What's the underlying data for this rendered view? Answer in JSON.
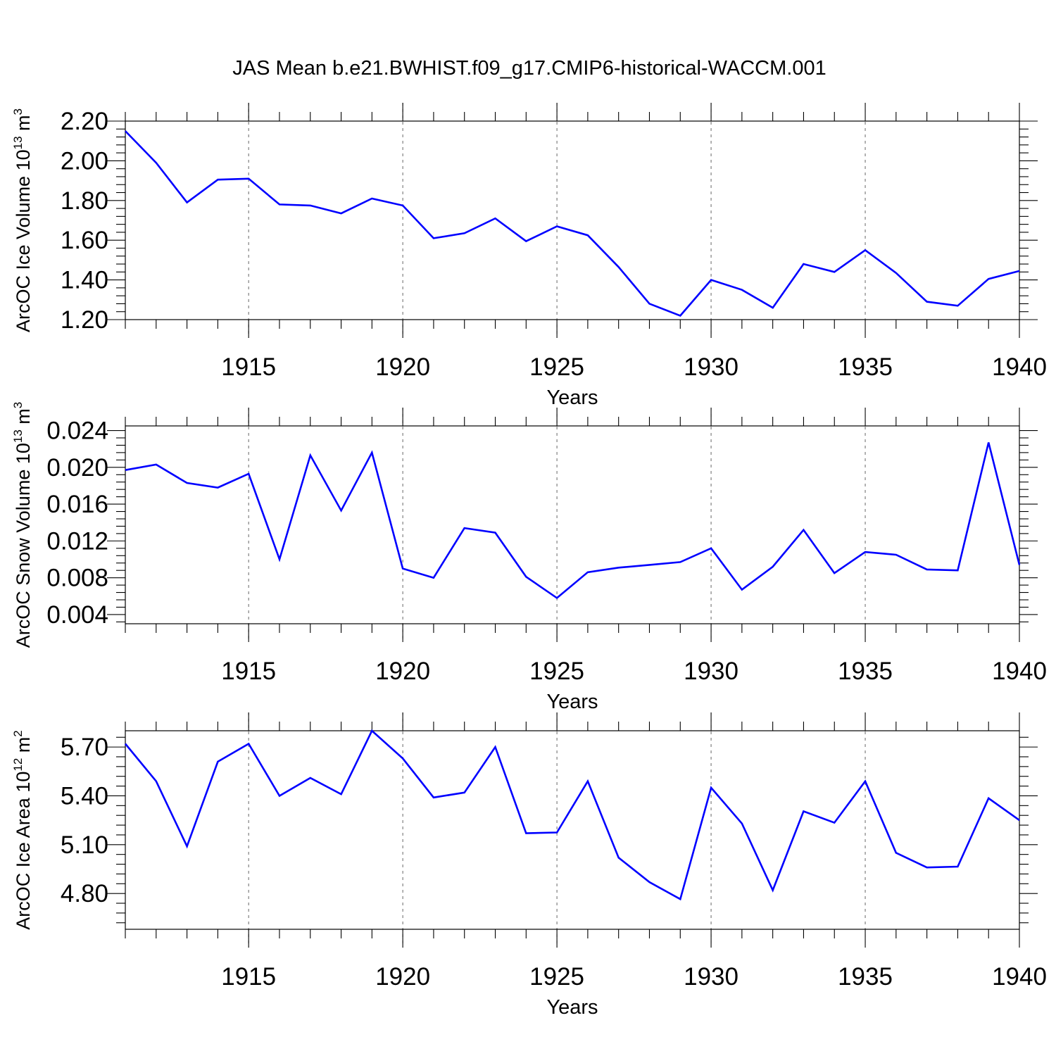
{
  "chart_data": {
    "title": "JAS Mean b.e21.BWHIST.f09_g17.CMIP6-historical-WACCM.001",
    "line_color": "#0000ff",
    "panels": [
      {
        "type": "line",
        "ylabel": "ArcOC Ice Volume 10",
        "ylabel_exp": "13",
        "ylabel_unit": " m",
        "ylabel_unit_exp": "3",
        "xlabel": "Years",
        "xlim": [
          1911,
          1940
        ],
        "ylim": [
          1.2,
          2.2
        ],
        "yticks": [
          "1.20",
          "1.40",
          "1.60",
          "1.80",
          "2.00",
          "2.20"
        ],
        "xticks": [
          "1915",
          "1920",
          "1925",
          "1930",
          "1935",
          "1940"
        ],
        "series": [
          {
            "name": "ice_volume",
            "x": [
              1911,
              1912,
              1913,
              1914,
              1915,
              1916,
              1917,
              1918,
              1919,
              1920,
              1921,
              1922,
              1923,
              1924,
              1925,
              1926,
              1927,
              1928,
              1929,
              1930,
              1931,
              1932,
              1933,
              1934,
              1935,
              1936,
              1937,
              1938,
              1939,
              1940
            ],
            "values": [
              2.15,
              1.99,
              1.79,
              1.905,
              1.91,
              1.78,
              1.775,
              1.735,
              1.81,
              1.775,
              1.61,
              1.635,
              1.71,
              1.595,
              1.67,
              1.625,
              1.465,
              1.28,
              1.22,
              1.4,
              1.35,
              1.26,
              1.48,
              1.44,
              1.55,
              1.435,
              1.29,
              1.27,
              1.405,
              1.445
            ]
          }
        ]
      },
      {
        "type": "line",
        "ylabel": "ArcOC Snow Volume 10",
        "ylabel_exp": "13",
        "ylabel_unit": " m",
        "ylabel_unit_exp": "3",
        "xlabel": "Years",
        "xlim": [
          1911,
          1940
        ],
        "ylim": [
          0.003,
          0.0245
        ],
        "yticks": [
          "0.004",
          "0.008",
          "0.012",
          "0.016",
          "0.020",
          "0.024"
        ],
        "xticks": [
          "1915",
          "1920",
          "1925",
          "1930",
          "1935",
          "1940"
        ],
        "series": [
          {
            "name": "snow_volume",
            "x": [
              1911,
              1912,
              1913,
              1914,
              1915,
              1916,
              1917,
              1918,
              1919,
              1920,
              1921,
              1922,
              1923,
              1924,
              1925,
              1926,
              1927,
              1928,
              1929,
              1930,
              1931,
              1932,
              1933,
              1934,
              1935,
              1936,
              1937,
              1938,
              1939,
              1940
            ],
            "values": [
              0.0197,
              0.0203,
              0.0183,
              0.0178,
              0.0193,
              0.01,
              0.0213,
              0.0153,
              0.0216,
              0.009,
              0.008,
              0.0134,
              0.0129,
              0.0081,
              0.0058,
              0.0086,
              0.0091,
              0.0094,
              0.0097,
              0.0112,
              0.0067,
              0.0092,
              0.0132,
              0.0085,
              0.0108,
              0.0105,
              0.0089,
              0.0088,
              0.0227,
              0.0094
            ]
          }
        ]
      },
      {
        "type": "line",
        "ylabel": "ArcOC Ice Area 10",
        "ylabel_exp": "12",
        "ylabel_unit": " m",
        "ylabel_unit_exp": "2",
        "xlabel": "Years",
        "xlim": [
          1911,
          1940
        ],
        "ylim": [
          4.58,
          5.8
        ],
        "yticks": [
          "4.80",
          "5.10",
          "5.40",
          "5.70"
        ],
        "xticks": [
          "1915",
          "1920",
          "1925",
          "1930",
          "1935",
          "1940"
        ],
        "series": [
          {
            "name": "ice_area",
            "x": [
              1911,
              1912,
              1913,
              1914,
              1915,
              1916,
              1917,
              1918,
              1919,
              1920,
              1921,
              1922,
              1923,
              1924,
              1925,
              1926,
              1927,
              1928,
              1929,
              1930,
              1931,
              1932,
              1933,
              1934,
              1935,
              1936,
              1937,
              1938,
              1939,
              1940
            ],
            "values": [
              5.72,
              5.49,
              5.09,
              5.61,
              5.72,
              5.4,
              5.51,
              5.41,
              5.8,
              5.63,
              5.39,
              5.42,
              5.7,
              5.17,
              5.175,
              5.49,
              5.02,
              4.87,
              4.765,
              5.45,
              5.23,
              4.82,
              5.305,
              5.235,
              5.49,
              5.05,
              4.96,
              4.965,
              5.385,
              5.25
            ]
          }
        ]
      }
    ]
  }
}
